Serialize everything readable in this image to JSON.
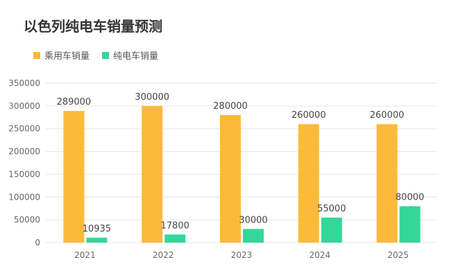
{
  "chart_data": {
    "type": "bar",
    "title": "以色列纯电车销量预测",
    "categories": [
      "2021",
      "2022",
      "2023",
      "2024",
      "2025"
    ],
    "series": [
      {
        "name": "乘用车销量",
        "color": "#FDB93A",
        "values": [
          289000,
          300000,
          280000,
          260000,
          260000
        ]
      },
      {
        "name": "纯电车销量",
        "color": "#34D79A",
        "values": [
          10935,
          17800,
          30000,
          55000,
          80000
        ]
      }
    ],
    "ylim": [
      0,
      350000
    ],
    "yticks": [
      "0",
      "50000",
      "100000",
      "150000",
      "200000",
      "250000",
      "300000",
      "350000"
    ],
    "grid": true,
    "legend": "top-left"
  }
}
